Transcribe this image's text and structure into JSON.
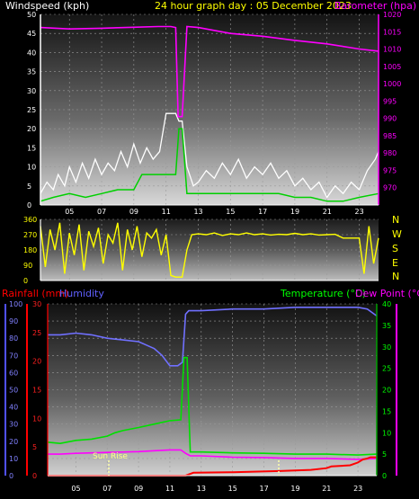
{
  "header": {
    "left_title": "Windspeed (kph)",
    "center_title": "24 hour graph day : 05 December 2023",
    "right_title": "Barometer (hpa)"
  },
  "panel3_labels": {
    "rainfall": "Rainfall (mm)",
    "humidity": "Humidity",
    "temperature": "Temperature (°C)",
    "dewpoint": "Dew Point (°C)",
    "sunrise": "Sun Rise"
  },
  "colors": {
    "wind_avg": "#00d000",
    "wind_gust": "#ffffff",
    "barometer": "#ff00ff",
    "direction": "#ffff00",
    "rain": "#ff0000",
    "humidity": "#7070ff",
    "temperature": "#00e000",
    "dewpoint": "#ff00ff",
    "axis_left": "#5050ff",
    "axis_right": "#00a000"
  },
  "chart_data": [
    {
      "type": "line",
      "title": "",
      "x_tick_labels": [
        "05",
        "07",
        "09",
        "11",
        "13",
        "15",
        "17",
        "19",
        "21",
        "23"
      ],
      "y_left_label": "Windspeed (kph)",
      "y_left_range": [
        0,
        50
      ],
      "y_left_ticks": [
        "0",
        "5",
        "10",
        "15",
        "20",
        "25",
        "30",
        "35",
        "40",
        "45",
        "50"
      ],
      "y_right_label": "Barometer (hpa)",
      "y_right_range": [
        965,
        1020
      ],
      "y_right_ticks": [
        "970",
        "975",
        "980",
        "985",
        "990",
        "995",
        "1000",
        "1005",
        "1010",
        "1015",
        "1020"
      ],
      "series": [
        {
          "name": "Barometer (hpa)",
          "axis": "right",
          "x": [
            3.2,
            5,
            7,
            9,
            10.5,
            11.3,
            11.6,
            11.75,
            12.0,
            12.3,
            13,
            15,
            17,
            19,
            21,
            23,
            24.2
          ],
          "values": [
            1016.2,
            1015.8,
            1016.0,
            1016.3,
            1016.5,
            1016.5,
            1016.2,
            990.5,
            990.5,
            1016.5,
            1016.2,
            1014.5,
            1013.7,
            1012.5,
            1011.5,
            1010.0,
            1009.4
          ]
        },
        {
          "name": "Gust",
          "axis": "left",
          "x": [
            3.2,
            3.6,
            4.0,
            4.3,
            4.7,
            5.0,
            5.4,
            5.8,
            6.2,
            6.6,
            7.0,
            7.4,
            7.8,
            8.2,
            8.6,
            9.0,
            9.4,
            9.8,
            10.2,
            10.6,
            11.0,
            11.3,
            11.6,
            11.8,
            12.0,
            12.3,
            12.7,
            13.0,
            13.5,
            14.0,
            14.5,
            15.0,
            15.5,
            16.0,
            16.5,
            17.0,
            17.5,
            18.0,
            18.5,
            19.0,
            19.5,
            20.0,
            20.5,
            21.0,
            21.5,
            22.0,
            22.5,
            23.0,
            23.5,
            24.0,
            24.2
          ],
          "values": [
            3,
            6,
            4,
            8,
            5,
            10,
            6,
            11,
            7,
            12,
            8,
            11,
            9,
            14,
            10,
            16,
            11,
            15,
            12,
            14,
            24,
            24,
            24,
            22,
            22,
            10,
            5,
            6,
            9,
            7,
            11,
            8,
            12,
            7,
            10,
            8,
            11,
            7,
            9,
            5,
            7,
            4,
            6,
            2,
            5,
            3,
            6,
            4,
            9,
            12,
            14
          ]
        },
        {
          "name": "Average",
          "axis": "left",
          "x": [
            3.2,
            4.0,
            5.0,
            6.0,
            7.0,
            8.0,
            9.0,
            9.5,
            10.0,
            10.5,
            11.0,
            11.3,
            11.6,
            11.8,
            12.0,
            12.3,
            13.0,
            14.0,
            15.0,
            16.0,
            17.0,
            18.0,
            19.0,
            20.0,
            21.0,
            22.0,
            23.0,
            24.2
          ],
          "values": [
            1,
            2,
            3,
            2,
            3,
            4,
            4,
            8,
            8,
            8,
            8,
            8,
            8,
            20,
            20,
            3,
            3,
            3,
            3,
            3,
            3,
            3,
            2,
            2,
            1,
            1,
            2,
            3
          ]
        }
      ]
    },
    {
      "type": "line",
      "title": "",
      "x_tick_labels": [],
      "y_left_range": [
        0,
        360
      ],
      "y_left_ticks": [
        "0",
        "90",
        "180",
        "270",
        "360"
      ],
      "y_right_ticks": [
        "N",
        "W",
        "S",
        "E",
        "N"
      ],
      "series": [
        {
          "name": "Wind Direction",
          "x": [
            3.2,
            3.5,
            3.8,
            4.1,
            4.4,
            4.7,
            5.0,
            5.3,
            5.6,
            5.9,
            6.2,
            6.5,
            6.8,
            7.1,
            7.4,
            7.7,
            8.0,
            8.3,
            8.6,
            8.9,
            9.2,
            9.5,
            9.8,
            10.1,
            10.4,
            10.7,
            11.0,
            11.3,
            11.6,
            12.0,
            12.3,
            12.6,
            13.0,
            13.5,
            14.0,
            14.5,
            15.0,
            15.5,
            16.0,
            16.5,
            17.0,
            17.5,
            18.0,
            18.5,
            19.0,
            19.5,
            20.0,
            20.5,
            21.0,
            21.5,
            22.0,
            22.5,
            23.0,
            23.3,
            23.6,
            23.9,
            24.2
          ],
          "values": [
            320,
            80,
            300,
            180,
            340,
            40,
            280,
            150,
            330,
            60,
            290,
            200,
            310,
            100,
            270,
            220,
            340,
            60,
            300,
            180,
            320,
            140,
            280,
            250,
            300,
            150,
            270,
            30,
            20,
            20,
            180,
            270,
            275,
            270,
            280,
            265,
            275,
            270,
            280,
            270,
            275,
            268,
            272,
            270,
            278,
            270,
            275,
            268,
            270,
            272,
            250,
            250,
            250,
            40,
            320,
            100,
            250
          ]
        }
      ]
    },
    {
      "type": "line",
      "title": "",
      "x_tick_labels": [
        "05",
        "07",
        "09",
        "11",
        "13",
        "15",
        "17",
        "19",
        "21",
        "23"
      ],
      "y_left_label": "Humidity",
      "y_left_range": [
        0,
        100
      ],
      "y_left_ticks": [
        "0",
        "10",
        "20",
        "30",
        "40",
        "50",
        "60",
        "70",
        "80",
        "90",
        "100"
      ],
      "y_left_rain_label": "Rainfall (mm)",
      "y_left_rain_ticks": [
        "0",
        "5",
        "10",
        "15",
        "20",
        "25",
        "30"
      ],
      "y_right_label": "Temperature (°C)",
      "y_right_range": [
        0,
        40
      ],
      "y_right_ticks": [
        "0",
        "5",
        "10",
        "15",
        "20",
        "25",
        "30",
        "35",
        "40"
      ],
      "series": [
        {
          "name": "Humidity",
          "axis": "left",
          "x": [
            3.2,
            4.0,
            5.0,
            6.0,
            7.0,
            8.0,
            9.0,
            9.5,
            10.0,
            10.5,
            11.0,
            11.5,
            11.8,
            12.0,
            12.2,
            13.0,
            15.0,
            17.0,
            19.0,
            21.0,
            23.0,
            23.6,
            24.2
          ],
          "values": [
            82,
            82,
            83,
            82,
            80,
            79,
            78,
            76,
            74,
            70,
            64,
            64,
            66,
            94,
            96,
            96,
            97,
            97,
            98,
            98,
            98,
            97,
            93
          ]
        },
        {
          "name": "Temperature (°C)",
          "axis": "right",
          "x": [
            3.2,
            4.0,
            5.0,
            6.0,
            7.0,
            7.5,
            8.0,
            9.0,
            10.0,
            11.0,
            11.7,
            11.9,
            12.1,
            12.3,
            13.0,
            15.0,
            17.0,
            19.0,
            21.0,
            23.0,
            24.2
          ],
          "values": [
            7.8,
            7.5,
            8.2,
            8.5,
            9.2,
            10.0,
            10.5,
            11.2,
            12.0,
            12.8,
            13.0,
            27.5,
            27.5,
            5.5,
            5.5,
            5.3,
            5.2,
            5.0,
            5.0,
            4.8,
            5.0
          ]
        },
        {
          "name": "Dew Point (°C)",
          "axis": "right",
          "x": [
            3.2,
            4.0,
            5.0,
            7.0,
            9.0,
            10.0,
            11.0,
            11.7,
            12.0,
            12.3,
            13.0,
            15.0,
            17.0,
            19.0,
            21.0,
            23.0,
            24.2
          ],
          "values": [
            5.0,
            5.0,
            5.2,
            5.4,
            5.6,
            5.8,
            6.0,
            6.0,
            5.2,
            4.6,
            4.6,
            4.3,
            4.2,
            4.0,
            4.0,
            3.8,
            4.0
          ]
        },
        {
          "name": "Rainfall (mm)",
          "axis": "rain",
          "x": [
            3.2,
            12.0,
            12.5,
            15.0,
            18.0,
            20.0,
            21.0,
            21.3,
            22.5,
            23.0,
            23.3,
            23.6,
            23.8,
            24.2
          ],
          "values": [
            0,
            0,
            0.5,
            0.6,
            0.8,
            1.0,
            1.3,
            1.6,
            1.8,
            2.3,
            2.8,
            3.0,
            3.2,
            3.2
          ]
        }
      ]
    }
  ]
}
